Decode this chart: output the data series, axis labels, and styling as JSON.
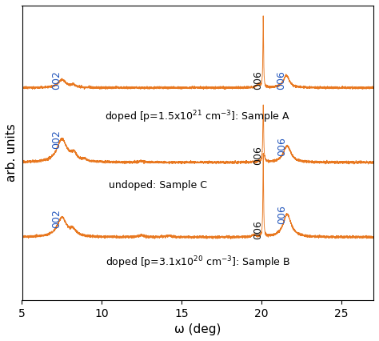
{
  "xlabel": "ω (deg)",
  "ylabel": "arb. units",
  "xlim": [
    5,
    27
  ],
  "ylim": [
    -1.2,
    5.5
  ],
  "x_ticks": [
    5,
    10,
    15,
    20,
    25
  ],
  "line_color": "#E87820",
  "background_color": "#ffffff",
  "label_color_blue": "#2255BB",
  "label_color_black": "#111111",
  "offsets": [
    3.6,
    1.9,
    0.2
  ],
  "peak_002": 7.5,
  "peak_006_black": 20.1,
  "peak_006_blue": 21.6
}
